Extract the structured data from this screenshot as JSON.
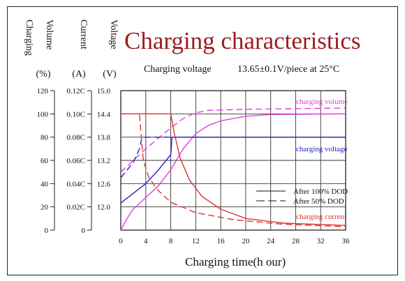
{
  "title": "Charging characteristics",
  "subtitle_label": "Charging voltage",
  "subtitle_value": "13.65±0.1V/piece   at 25°C",
  "chart_data": {
    "type": "line",
    "xlabel": "Charging time(h  our)",
    "x_ticks": [
      "0",
      "4",
      "8",
      "12",
      "16",
      "20",
      "24",
      "28",
      "32",
      "36"
    ],
    "xlim": [
      0,
      36
    ],
    "y_axes": [
      {
        "name": "Charging Volume",
        "unit": "(%)",
        "ticks": [
          "120",
          "100",
          "80",
          "60",
          "40",
          "20",
          "0"
        ],
        "range": [
          0,
          120
        ]
      },
      {
        "name": "Current",
        "unit": "(A)",
        "ticks": [
          "0.12C",
          "0.10C",
          "0.08C",
          "0.06C",
          "0.04C",
          "0.02C",
          "0"
        ],
        "range": [
          0,
          0.12
        ]
      },
      {
        "name": "Voltage",
        "unit": "(V)",
        "ticks": [
          "15.0",
          "14.4",
          "13.8",
          "13.2",
          "12.6",
          "12.0"
        ],
        "range": [
          11.4,
          15.0
        ]
      }
    ],
    "grid": true,
    "legend": [
      {
        "label": "After 100% DOD",
        "style": "solid"
      },
      {
        "label": "After 50% DOD",
        "style": "dashed"
      }
    ],
    "series": [
      {
        "name": "charging volume",
        "axis": 0,
        "style": "solid",
        "color": "#e23de0",
        "points": [
          [
            0,
            0
          ],
          [
            1,
            10
          ],
          [
            2,
            18
          ],
          [
            4,
            28
          ],
          [
            6,
            38
          ],
          [
            8,
            52
          ],
          [
            10,
            70
          ],
          [
            12,
            83
          ],
          [
            14,
            90
          ],
          [
            16,
            94
          ],
          [
            20,
            98
          ],
          [
            24,
            99.5
          ],
          [
            36,
            100
          ]
        ]
      },
      {
        "name": "charging volume",
        "axis": 0,
        "style": "dashed",
        "color": "#e23de0",
        "points": [
          [
            0,
            50
          ],
          [
            2,
            60
          ],
          [
            4,
            70
          ],
          [
            6,
            79
          ],
          [
            8,
            88
          ],
          [
            10,
            96
          ],
          [
            12,
            101
          ],
          [
            14,
            103
          ],
          [
            20,
            104
          ],
          [
            28,
            104.5
          ],
          [
            36,
            105
          ]
        ]
      },
      {
        "name": "charging voltage",
        "axis": 2,
        "style": "solid",
        "color": "#2323c8",
        "points": [
          [
            0,
            12.1
          ],
          [
            2,
            12.35
          ],
          [
            4,
            12.6
          ],
          [
            6,
            12.95
          ],
          [
            8,
            13.35
          ],
          [
            8.2,
            13.8
          ],
          [
            36,
            13.8
          ]
        ]
      },
      {
        "name": "charging voltage",
        "axis": 2,
        "style": "dashed",
        "color": "#2323c8",
        "points": [
          [
            0,
            12.75
          ],
          [
            1,
            12.95
          ],
          [
            2,
            13.15
          ],
          [
            3,
            13.5
          ],
          [
            3.4,
            13.8
          ],
          [
            36,
            13.8
          ]
        ]
      },
      {
        "name": "charging current",
        "axis": 1,
        "style": "solid",
        "color": "#e23030",
        "points": [
          [
            0,
            0.1
          ],
          [
            8,
            0.1
          ],
          [
            8.5,
            0.085
          ],
          [
            9.5,
            0.062
          ],
          [
            11,
            0.043
          ],
          [
            13,
            0.029
          ],
          [
            16,
            0.018
          ],
          [
            20,
            0.01
          ],
          [
            26,
            0.006
          ],
          [
            36,
            0.004
          ]
        ]
      },
      {
        "name": "charging current",
        "axis": 1,
        "style": "dashed",
        "color": "#e23030",
        "points": [
          [
            0,
            0.1
          ],
          [
            3,
            0.1
          ],
          [
            3.2,
            0.085
          ],
          [
            3.6,
            0.06
          ],
          [
            4.5,
            0.045
          ],
          [
            6,
            0.034
          ],
          [
            8,
            0.024
          ],
          [
            12,
            0.015
          ],
          [
            18,
            0.009
          ],
          [
            26,
            0.005
          ],
          [
            36,
            0.003
          ]
        ]
      }
    ],
    "annotations": [
      {
        "text": "charging volume",
        "color": "#e23de0"
      },
      {
        "text": "charging voltage",
        "color": "#2323c8"
      },
      {
        "text": "charging current",
        "color": "#e23030"
      }
    ]
  }
}
